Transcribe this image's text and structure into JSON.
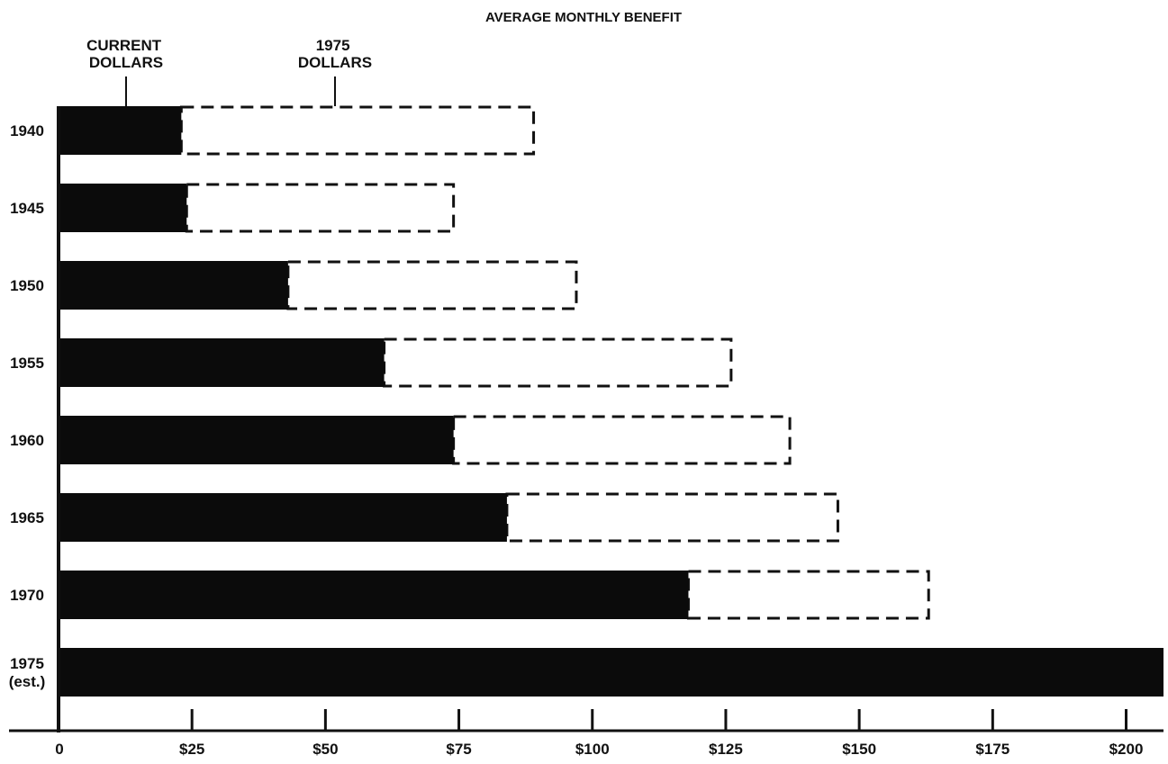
{
  "chart_data": {
    "type": "bar",
    "title": "AVERAGE MONTHLY BENEFIT",
    "xlabel": "",
    "ylabel": "",
    "orientation": "horizontal",
    "categories": [
      "1940",
      "1945",
      "1950",
      "1955",
      "1960",
      "1965",
      "1970",
      "1975\n(est.)"
    ],
    "series": [
      {
        "name": "CURRENT DOLLARS",
        "style": "solid",
        "color": "#0b0b0b",
        "values": [
          23,
          24,
          43,
          61,
          74,
          84,
          118,
          207
        ]
      },
      {
        "name": "1975 DOLLARS",
        "style": "dashed-outline",
        "color": "#111111",
        "values": [
          89,
          74,
          97,
          126,
          137,
          146,
          163,
          207
        ]
      }
    ],
    "xlim": [
      0,
      207
    ],
    "xticks": [
      0,
      25,
      50,
      75,
      100,
      125,
      150,
      175,
      200
    ],
    "xtick_labels": [
      "0",
      "$25",
      "$50",
      "$75",
      "$100",
      "$125",
      "$150",
      "$175",
      "$200"
    ],
    "grid": false,
    "legend": "top-left (labels with leader lines)"
  }
}
